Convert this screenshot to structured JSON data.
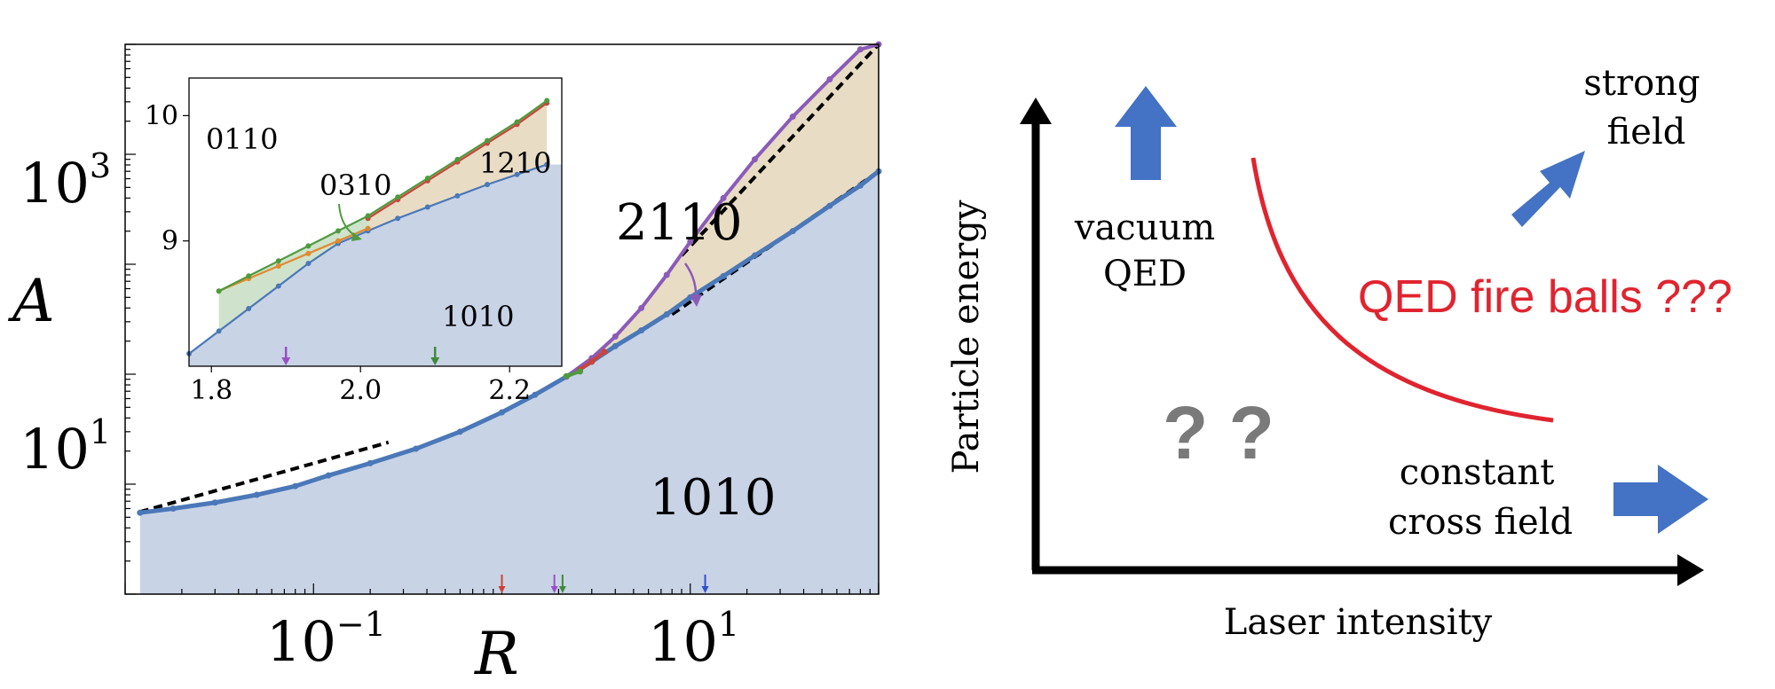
{
  "chart_data": [
    {
      "type": "area",
      "panel": "left",
      "xlabel": "R",
      "ylabel": "A",
      "xscale": "log",
      "yscale": "log",
      "xlim": [
        0.01,
        100
      ],
      "ylim": [
        0.1,
        10000
      ],
      "x_ticks": [
        {
          "value": 0.1,
          "base": "10",
          "exp": "−1"
        },
        {
          "value": 10,
          "base": "10",
          "exp": "1"
        }
      ],
      "y_ticks": [
        {
          "value": 10,
          "base": "10",
          "exp": "1"
        },
        {
          "value": 1000,
          "base": "10",
          "exp": "3"
        }
      ],
      "region_labels": [
        "2110",
        "1010"
      ],
      "series": [
        {
          "name": "1010",
          "color": "#4a78b8",
          "x": [
            0.012,
            0.018,
            0.03,
            0.05,
            0.08,
            0.12,
            0.2,
            0.35,
            0.6,
            1.0,
            1.5,
            2.2,
            3.0,
            4.0,
            5.5,
            7.5,
            10,
            15,
            22,
            35,
            55,
            80,
            100
          ],
          "y": [
            0.55,
            0.6,
            0.68,
            0.8,
            0.96,
            1.2,
            1.55,
            2.1,
            3.0,
            4.5,
            6.5,
            9.5,
            13,
            18,
            25,
            35,
            50,
            78,
            120,
            200,
            340,
            520,
            700
          ]
        },
        {
          "name": "2110",
          "color": "#8b5bb8",
          "x": [
            2.2,
            3.0,
            4.0,
            5.5,
            7.5,
            10,
            15,
            22,
            35,
            55,
            80,
            100
          ],
          "y": [
            9.5,
            14,
            22,
            40,
            80,
            160,
            400,
            900,
            2200,
            4800,
            9000,
            13000
          ]
        },
        {
          "name": "1210",
          "color": "#c8453a",
          "x": [
            2.6,
            3.0,
            3.5
          ],
          "y": [
            11,
            13,
            16
          ]
        },
        {
          "name": "0310",
          "color": "#4f9a3e",
          "x": [
            2.2,
            2.6
          ],
          "y": [
            9.6,
            10.6
          ]
        }
      ],
      "asymptotes": [
        {
          "x": [
            0.012,
            0.25
          ],
          "y": [
            0.56,
            2.4
          ]
        },
        {
          "x": [
            8,
            100
          ],
          "y": [
            35,
            700
          ]
        },
        {
          "x": [
            9,
            100
          ],
          "y": [
            120,
            14000
          ]
        }
      ],
      "markers_x": [
        {
          "value": 1.0,
          "color": "#d04030"
        },
        {
          "value": 1.9,
          "color": "#9b4fc8"
        },
        {
          "value": 2.1,
          "color": "#3f8a3a"
        },
        {
          "value": 12,
          "color": "#3050d0"
        }
      ],
      "inset": {
        "xlim": [
          1.77,
          2.27
        ],
        "ylim": [
          8.0,
          10.3
        ],
        "x_ticks": [
          "1.8",
          "2.0",
          "2.2"
        ],
        "y_ticks": [
          "9",
          "10"
        ],
        "labels": [
          "0110",
          "0310",
          "1210",
          "1010"
        ],
        "series": [
          {
            "name": "1010",
            "color": "#4a78b8",
            "x": [
              1.77,
              1.81,
              1.85,
              1.89,
              1.93,
              1.97,
              2.01,
              2.05,
              2.09,
              2.13,
              2.17,
              2.21,
              2.25
            ],
            "y": [
              8.1,
              8.28,
              8.46,
              8.64,
              8.82,
              8.98,
              9.08,
              9.18,
              9.27,
              9.36,
              9.45,
              9.53,
              9.61
            ]
          },
          {
            "name": "0110",
            "color": "#e08a30",
            "x": [
              1.81,
              1.85,
              1.89,
              1.93,
              1.97,
              2.01
            ],
            "y": [
              8.6,
              8.7,
              8.8,
              8.9,
              9.0,
              9.1
            ]
          },
          {
            "name": "1210",
            "color": "#c8453a",
            "x": [
              2.01,
              2.05,
              2.09,
              2.13,
              2.17,
              2.21,
              2.25
            ],
            "y": [
              9.18,
              9.33,
              9.48,
              9.63,
              9.78,
              9.93,
              10.1
            ]
          },
          {
            "name": "0310",
            "color": "#4f9a3e",
            "x": [
              1.81,
              1.85,
              1.89,
              1.93,
              1.97,
              2.01,
              2.05,
              2.09,
              2.13,
              2.17,
              2.21,
              2.25
            ],
            "y": [
              8.6,
              8.72,
              8.84,
              8.96,
              9.08,
              9.2,
              9.35,
              9.5,
              9.65,
              9.8,
              9.95,
              10.12
            ]
          }
        ],
        "markers_x": [
          {
            "value": 1.9,
            "color": "#9b4fc8"
          },
          {
            "value": 2.1,
            "color": "#3f8a3a"
          }
        ]
      }
    },
    {
      "type": "diagram",
      "panel": "right",
      "xlabel": "Laser intensity",
      "ylabel": "Particle energy",
      "labels": {
        "vacuum": [
          "vacuum",
          "QED"
        ],
        "strong": [
          "strong",
          "field"
        ],
        "constant": [
          "constant",
          "cross field"
        ],
        "fireballs": "QED fire balls ???",
        "question": "? ?"
      },
      "colors": {
        "arrow": "#4472c4",
        "curve": "#e0242f",
        "axis": "#000000"
      }
    }
  ]
}
